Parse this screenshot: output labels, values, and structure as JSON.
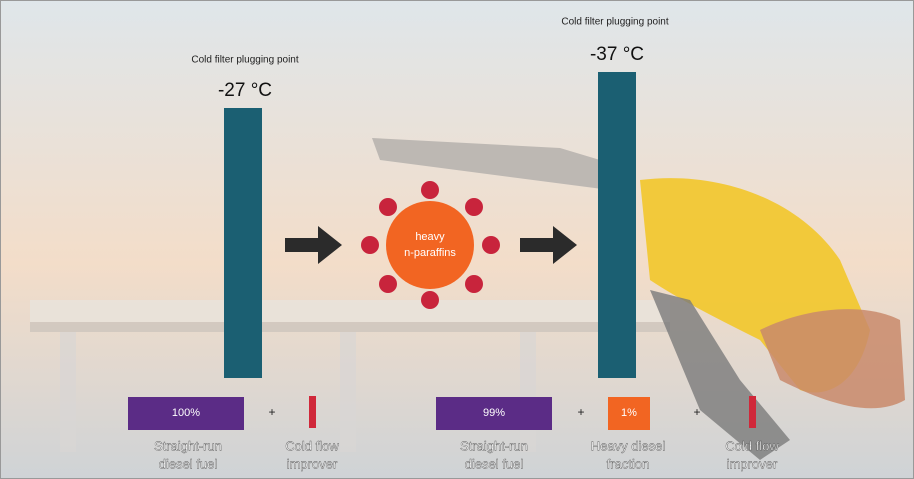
{
  "left": {
    "caption": "Cold filter plugging point",
    "temperature": "-27 °C"
  },
  "right": {
    "caption": "Cold filter plugging point",
    "temperature": "-37 °C"
  },
  "additive": {
    "label": [
      "heavy",
      "n-paraffins"
    ]
  },
  "mix_left": {
    "base_share": "100%",
    "plus": "+",
    "base_label": [
      "Straight-run",
      "diesel fuel"
    ],
    "improver_label": [
      "Cold flow",
      "improver"
    ]
  },
  "mix_right": {
    "base_share": "99%",
    "plus_1": "+",
    "heavy_share": "1%",
    "plus_2": "+",
    "base_label": [
      "Straight-run",
      "diesel fuel"
    ],
    "heavy_label": [
      "Heavy diesel",
      "fraction"
    ],
    "improver_label": [
      "Cold flow",
      "improver"
    ]
  }
}
